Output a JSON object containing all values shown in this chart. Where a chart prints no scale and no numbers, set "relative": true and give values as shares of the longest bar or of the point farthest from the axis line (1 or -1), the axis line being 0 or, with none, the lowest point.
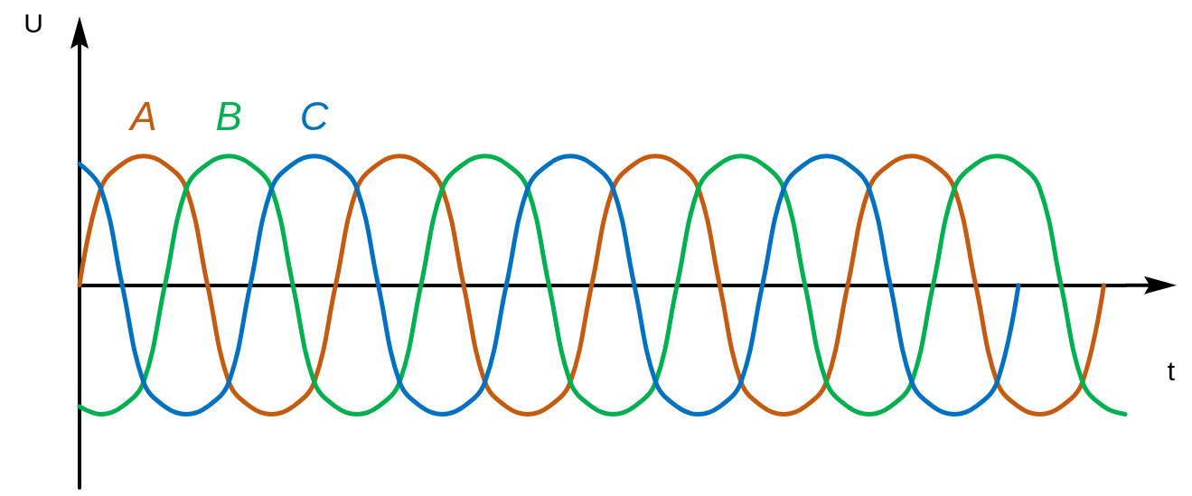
{
  "chart_data": {
    "type": "line",
    "relative": true,
    "xlabel": "t",
    "ylabel": "U",
    "grid": false,
    "legend": false,
    "marker": "none",
    "line_style": "solid",
    "categories": [
      null,
      null,
      null,
      null,
      null,
      null,
      null,
      null,
      null,
      null,
      null,
      null,
      null,
      null,
      null,
      null,
      null,
      null,
      null,
      null,
      null,
      null,
      null,
      null,
      null,
      null,
      null,
      null,
      null,
      null,
      null,
      null,
      null,
      null,
      null,
      null,
      null,
      null,
      null,
      null,
      null,
      null,
      null,
      null,
      null,
      null,
      null,
      null,
      null,
      null
    ],
    "series": [
      {
        "name": "A",
        "color": "#c55a11",
        "values": [
          0,
          0.75,
          0.94,
          1,
          0.94,
          0.75,
          0,
          -0.75,
          -0.94,
          -1,
          -0.94,
          -0.75,
          0,
          0.75,
          0.94,
          1,
          0.94,
          0.75,
          0,
          -0.75,
          -0.94,
          -1,
          -0.94,
          -0.75,
          0,
          0.75,
          0.94,
          1,
          0.94,
          0.75,
          0,
          -0.75,
          -0.94,
          -1,
          -0.94,
          -0.75,
          0,
          0.75,
          0.94,
          1,
          0.94,
          0.75,
          0,
          -0.75,
          -0.94,
          -1,
          -0.94,
          -0.75,
          0,
          null
        ]
      },
      {
        "name": "B",
        "color": "#00b050",
        "values": [
          -0.94,
          -1,
          -0.94,
          -0.75,
          0,
          0.75,
          0.94,
          1,
          0.94,
          0.75,
          0,
          -0.75,
          -0.94,
          -1,
          -0.94,
          -0.75,
          0,
          0.75,
          0.94,
          1,
          0.94,
          0.75,
          0,
          -0.75,
          -0.94,
          -1,
          -0.94,
          -0.75,
          0,
          0.75,
          0.94,
          1,
          0.94,
          0.75,
          0,
          -0.75,
          -0.94,
          -1,
          -0.94,
          -0.75,
          0,
          0.75,
          0.94,
          1,
          0.94,
          0.75,
          0,
          -0.75,
          -0.94,
          -1
        ]
      },
      {
        "name": "C",
        "color": "#0070c0",
        "values": [
          0.94,
          0.75,
          0,
          -0.75,
          -0.94,
          -1,
          -0.94,
          -0.75,
          0,
          0.75,
          0.94,
          1,
          0.94,
          0.75,
          0,
          -0.75,
          -0.94,
          -1,
          -0.94,
          -0.75,
          0,
          0.75,
          0.94,
          1,
          0.94,
          0.75,
          0,
          -0.75,
          -0.94,
          -1,
          -0.94,
          -0.75,
          0,
          0.75,
          0.94,
          1,
          0.94,
          0.75,
          0,
          -0.75,
          -0.94,
          -1,
          -0.94,
          -0.75,
          0,
          null,
          null,
          null,
          null,
          null
        ]
      }
    ]
  }
}
